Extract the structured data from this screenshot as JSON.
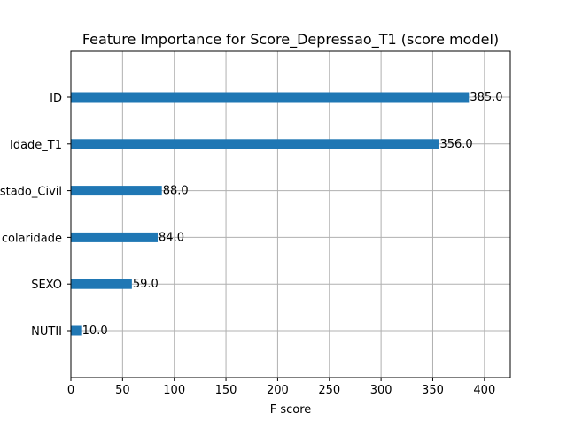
{
  "chart_data": {
    "type": "bar",
    "orientation": "horizontal",
    "title": "Feature Importance for Score_Depressao_T1 (score model)",
    "xlabel": "F score",
    "ylabel": "",
    "xlim": [
      0,
      425
    ],
    "x_ticks": [
      0,
      50,
      100,
      150,
      200,
      250,
      300,
      350,
      400
    ],
    "categories": [
      "NUTII",
      "SEXO",
      "Escolaridade",
      "Estado_Civil",
      "Idade_T1",
      "ID"
    ],
    "visible_category_labels": [
      "NUTII",
      "SEXO",
      "colaridade",
      "stado_Civil",
      "Idade_T1",
      "ID"
    ],
    "values": [
      10,
      59,
      84,
      88,
      356,
      385
    ],
    "value_labels": [
      "10.0",
      "59.0",
      "84.0",
      "88.0",
      "356.0",
      "385.0"
    ],
    "grid": true,
    "legend": "none",
    "colors": {
      "bar": "#1f77b4",
      "grid": "#b0b0b0",
      "axes": "#000000"
    }
  }
}
